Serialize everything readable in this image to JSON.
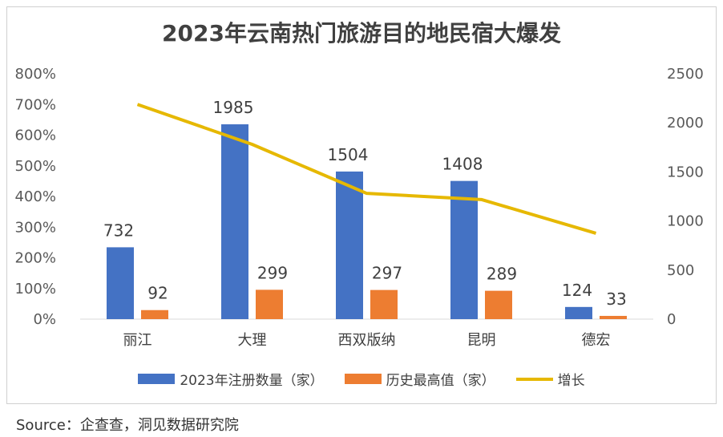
{
  "title": "2023年云南热门旅游目的地民宿大爆发",
  "source": "Source：企查查，洞见数据研究院",
  "colors": {
    "bar_2023": "#4472C4",
    "bar_hist": "#ED7D31",
    "line": "#E6B800"
  },
  "chart_data": {
    "type": "bar",
    "categories": [
      "丽江",
      "大理",
      "西双版纳",
      "昆明",
      "德宏"
    ],
    "series": [
      {
        "name": "2023年注册数量（家）",
        "type": "bar",
        "axis": "right",
        "values": [
          732,
          1985,
          1504,
          1408,
          124
        ],
        "labels": [
          "732",
          "1985",
          "1504",
          "1408",
          "124"
        ]
      },
      {
        "name": "历史最高值（家）",
        "type": "bar",
        "axis": "right",
        "values": [
          92,
          299,
          297,
          289,
          33
        ],
        "labels": [
          "92",
          "299",
          "297",
          "289",
          "33"
        ]
      },
      {
        "name": "增长",
        "type": "line",
        "axis": "left",
        "values": [
          7.0,
          5.7,
          4.1,
          3.9,
          2.8
        ]
      }
    ],
    "y_left": {
      "ylim": [
        0,
        8
      ],
      "ticks": [
        "0%",
        "100%",
        "200%",
        "300%",
        "400%",
        "500%",
        "600%",
        "700%",
        "800%"
      ]
    },
    "y_right": {
      "ylim": [
        0,
        2500
      ],
      "ticks": [
        "0",
        "500",
        "1000",
        "1500",
        "2000",
        "2500"
      ]
    },
    "grid": false,
    "legend_position": "bottom"
  }
}
